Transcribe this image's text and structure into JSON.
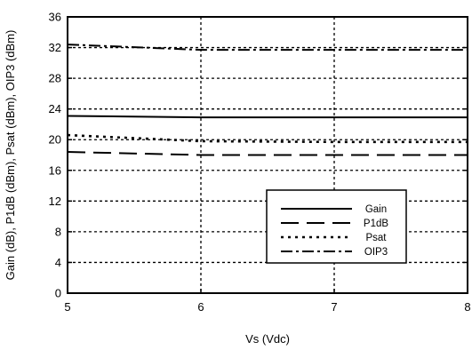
{
  "chart_data": {
    "type": "line",
    "xlabel": "Vs (Vdc)",
    "ylabel": "Gain (dB), P1dB (dBm), Psat (dBm), OIP3 (dBm)",
    "xlim": [
      5,
      8
    ],
    "ylim": [
      0,
      36
    ],
    "xticks": [
      "5",
      "6",
      "7",
      "8"
    ],
    "yticks": [
      "0",
      "4",
      "8",
      "12",
      "16",
      "20",
      "24",
      "28",
      "32",
      "36"
    ],
    "grid": true,
    "legend_position": "lower-right",
    "x": [
      5,
      6,
      7,
      8
    ],
    "series": [
      {
        "name": "Gain",
        "values": [
          23.1,
          22.9,
          22.9,
          22.9
        ],
        "dash": "solid"
      },
      {
        "name": "P1dB",
        "values": [
          18.4,
          18.0,
          18.0,
          18.0
        ],
        "dash": "long-dash"
      },
      {
        "name": "Psat",
        "values": [
          20.6,
          19.8,
          19.7,
          19.7
        ],
        "dash": "dotted"
      },
      {
        "name": "OIP3",
        "values": [
          32.4,
          31.7,
          31.7,
          31.7
        ],
        "dash": "dash-dot"
      }
    ]
  }
}
